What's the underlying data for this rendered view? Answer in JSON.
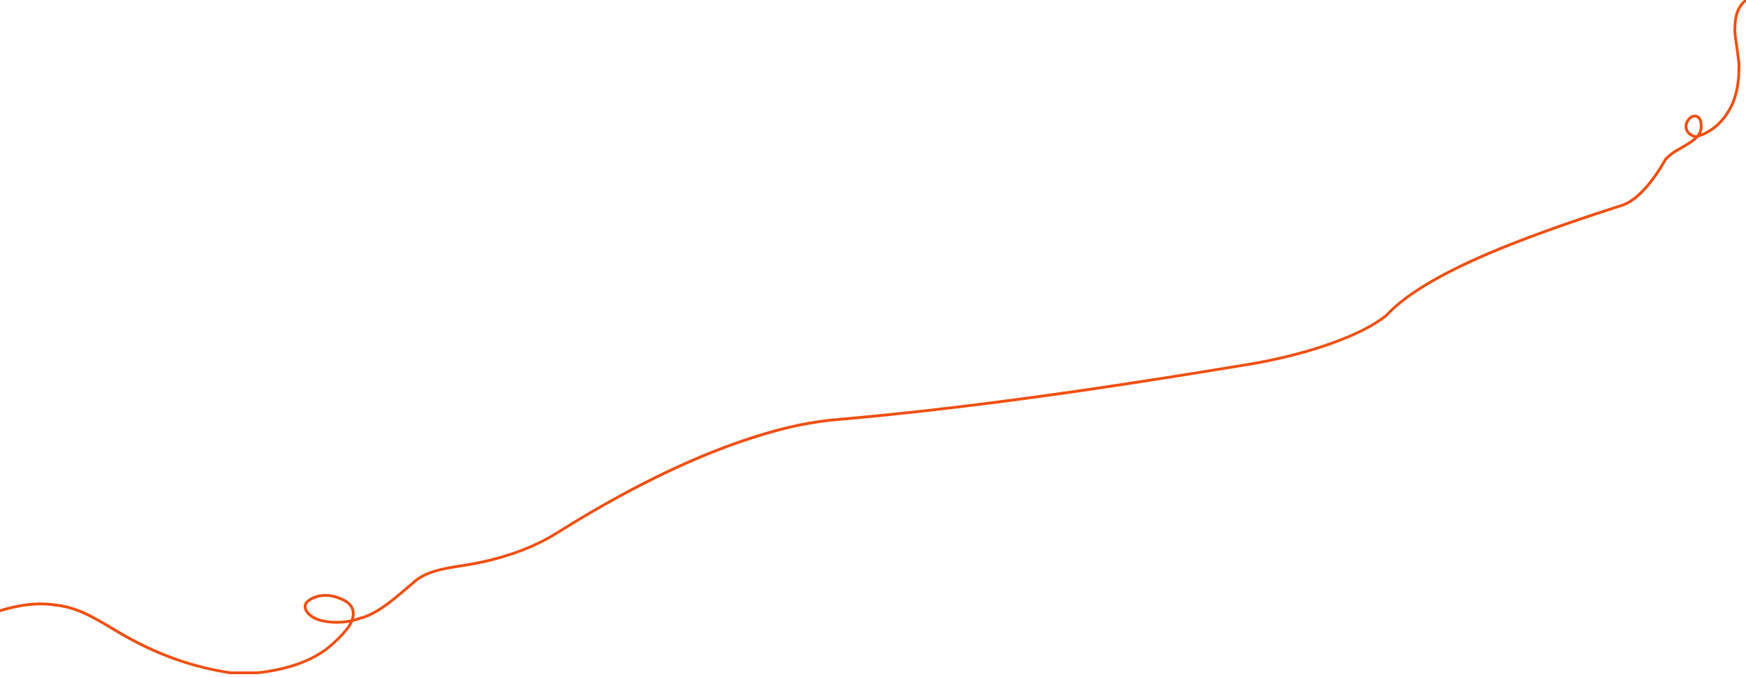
{
  "decoration": {
    "stroke_color": "#F04E0F",
    "background_color": "#FFFFFF",
    "kind": "hand-drawn squiggle line"
  }
}
